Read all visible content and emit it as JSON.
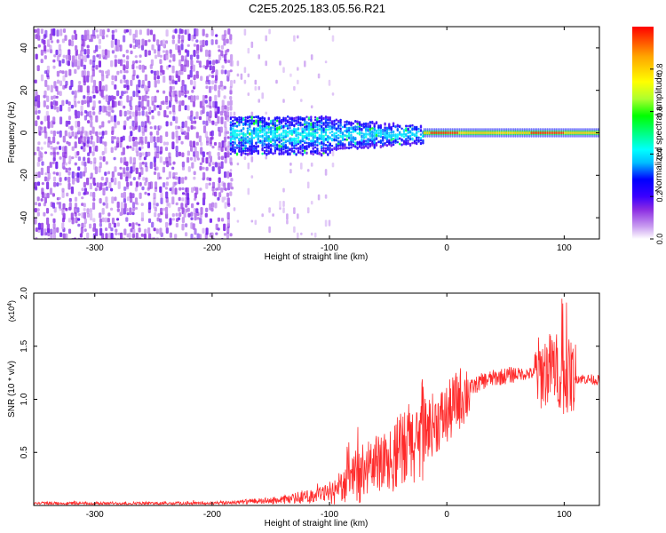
{
  "title": "C2E5.2025.183.05.56.R21",
  "chart_data": [
    {
      "type": "heatmap",
      "xlabel": "Height of straight line (km)",
      "ylabel": "Frequency (Hz)",
      "xlim": [
        -352,
        130
      ],
      "ylim": [
        -50,
        50
      ],
      "xticks": [
        -300,
        -200,
        -100,
        0,
        100
      ],
      "yticks": [
        -40,
        -20,
        0,
        20,
        40
      ],
      "colorbar": {
        "label": "Normalized spectral amplitude",
        "range": [
          0,
          1
        ],
        "ticks": [
          "0.0",
          "0.2",
          "0.4",
          "0.6",
          "0.8"
        ],
        "colormap": [
          "#ffffff",
          "#c89af0",
          "#8a2be2",
          "#3a00ff",
          "#0000ff",
          "#00bfff",
          "#00ffff",
          "#00ff7f",
          "#00ff00",
          "#adff2f",
          "#ffff00",
          "#ffa500",
          "#ff0000"
        ]
      },
      "regions": [
        {
          "x_range": [
            -352,
            -185
          ],
          "freq_range": [
            -50,
            50
          ],
          "amplitude": 0.08,
          "description_type": "broadband noise"
        },
        {
          "x_range": [
            -185,
            -100
          ],
          "freq_range": [
            -10,
            10
          ],
          "amplitude": 0.25
        },
        {
          "x_range": [
            -100,
            -20
          ],
          "freq_range": [
            -7,
            7
          ],
          "amplitude": 0.35
        },
        {
          "x_range": [
            -20,
            130
          ],
          "freq_range": [
            -1.5,
            1.5
          ],
          "amplitude": 0.95
        }
      ]
    },
    {
      "type": "line",
      "xlabel": "Height of straight line (km)",
      "ylabel": "SNR (10 * v/v)",
      "exponent_label": "(x10",
      "exponent_power": "4",
      "exponent_close": ")",
      "xlim": [
        -352,
        130
      ],
      "ylim": [
        0,
        2.0
      ],
      "xticks": [
        -300,
        -200,
        -100,
        0,
        100
      ],
      "yticks": [
        "0.5",
        "1.0",
        "1.5",
        "2.0"
      ],
      "series": [
        {
          "color": "#ff2a2a",
          "x": [
            -352,
            -300,
            -250,
            -200,
            -180,
            -160,
            -140,
            -120,
            -100,
            -90,
            -80,
            -70,
            -60,
            -50,
            -40,
            -30,
            -20,
            -10,
            0,
            10,
            20,
            30,
            40,
            50,
            60,
            70,
            80,
            90,
            95,
            100,
            105,
            110,
            120,
            130
          ],
          "y": [
            0.02,
            0.02,
            0.02,
            0.02,
            0.03,
            0.04,
            0.05,
            0.08,
            0.12,
            0.18,
            0.25,
            0.32,
            0.38,
            0.42,
            0.5,
            0.58,
            0.7,
            0.78,
            0.85,
            1.0,
            1.1,
            1.17,
            1.2,
            1.22,
            1.24,
            1.24,
            1.25,
            1.3,
            1.28,
            1.2,
            1.22,
            1.2,
            1.19,
            1.18
          ]
        }
      ]
    }
  ]
}
